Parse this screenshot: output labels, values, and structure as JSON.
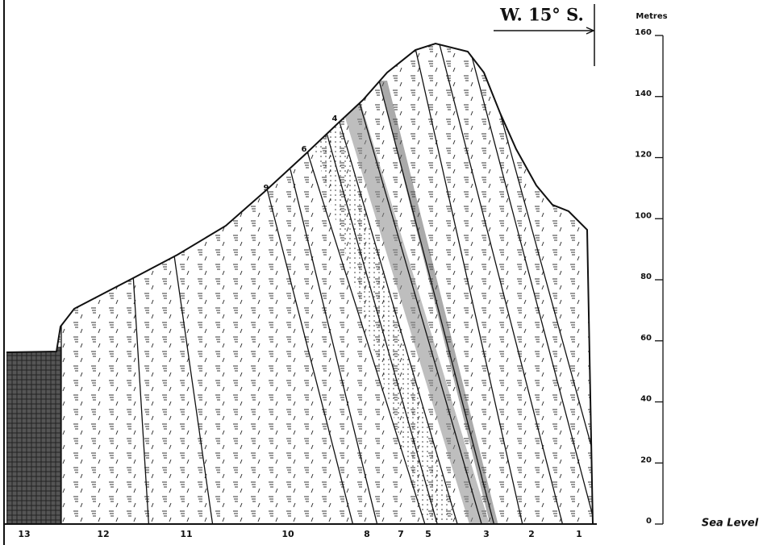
{
  "direction": "W. 15° S.",
  "scale": {
    "title": "Metres",
    "ticks": [
      0,
      20,
      40,
      60,
      80,
      100,
      120,
      140,
      160
    ],
    "baseline_label": "Sea Level"
  },
  "beds": [
    "13",
    "12",
    "11",
    "10",
    "8",
    "7",
    "5",
    "3",
    "2",
    "1"
  ],
  "profile_labels": [
    "9",
    "6",
    "4"
  ]
}
